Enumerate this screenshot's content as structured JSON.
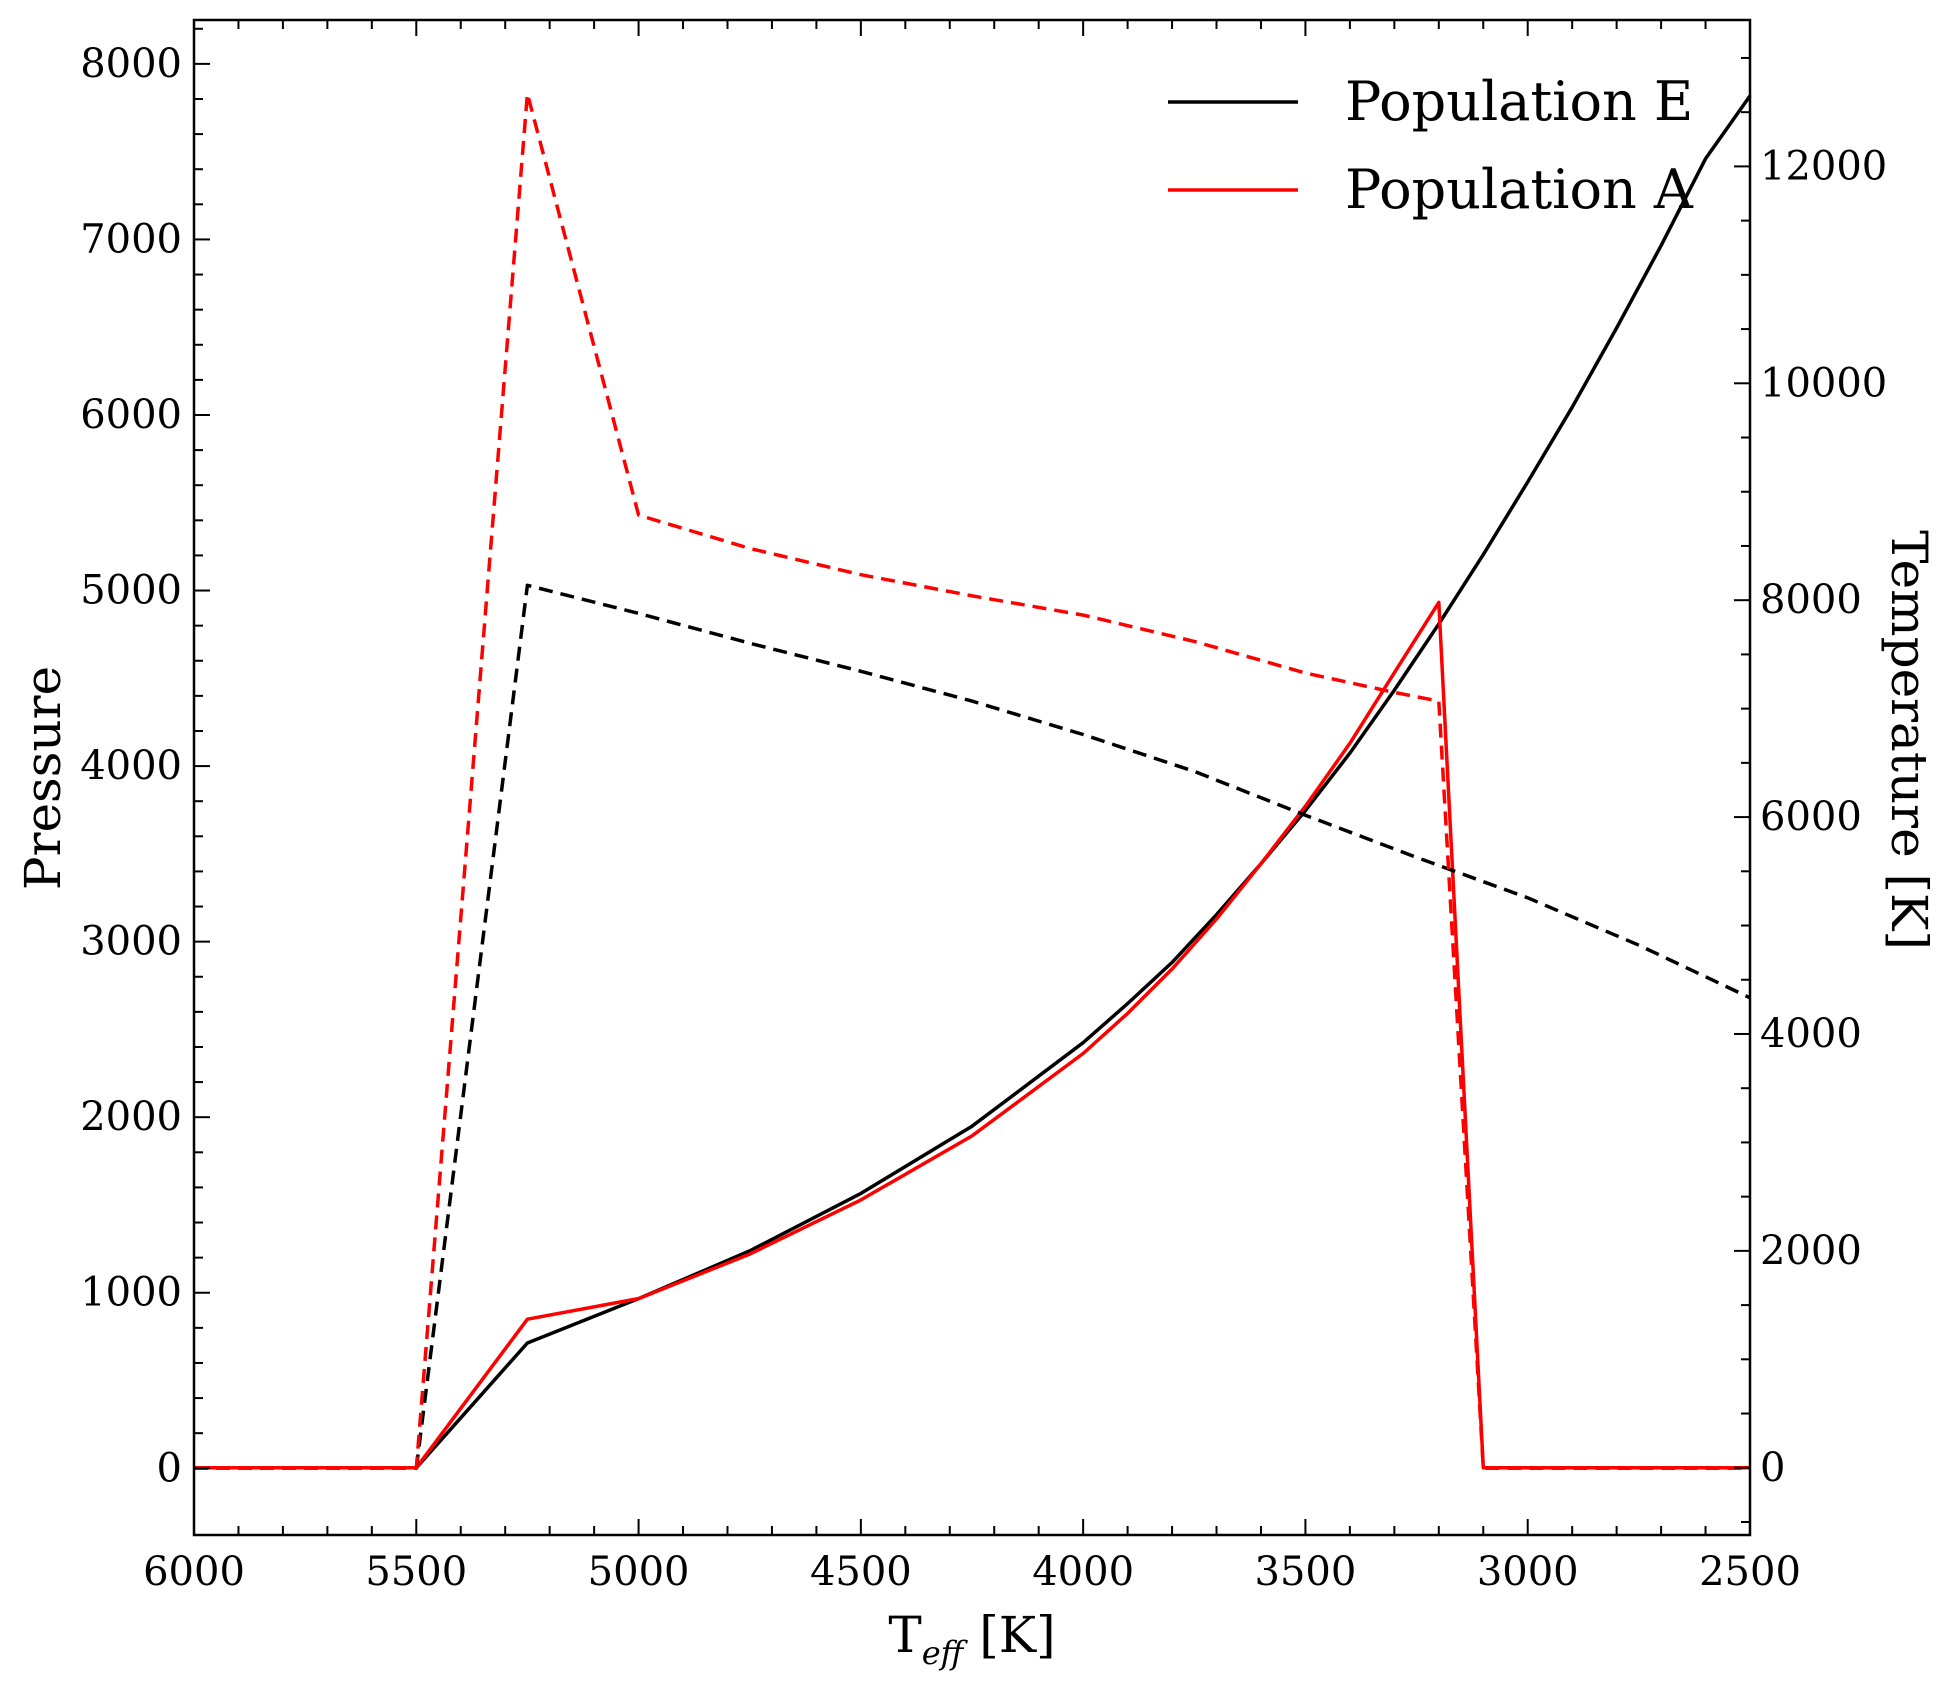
{
  "chart_data": {
    "type": "line",
    "title": "",
    "xlabel": "T",
    "xlabel_sub": "eff",
    "xlabel_unit": " [K]",
    "ylabel_left": "Pressure",
    "ylabel_right": "Temperature [K]",
    "xlim": [
      6000,
      2500
    ],
    "ylim_left": [
      -380,
      8250
    ],
    "ylim_right": [
      -620,
      13350
    ],
    "x_ticks": [
      6000,
      5500,
      5000,
      4500,
      4000,
      3500,
      3000,
      2500
    ],
    "x_tick_labels": [
      "6000",
      "5500",
      "5000",
      "4500",
      "4000",
      "3500",
      "3000",
      "2500"
    ],
    "y_left_ticks": [
      0,
      1000,
      2000,
      3000,
      4000,
      5000,
      6000,
      7000,
      8000
    ],
    "y_left_tick_labels": [
      "0",
      "1000",
      "2000",
      "3000",
      "4000",
      "5000",
      "6000",
      "7000",
      "8000"
    ],
    "y_right_ticks": [
      0,
      2000,
      4000,
      6000,
      8000,
      10000,
      12000
    ],
    "y_right_tick_labels": [
      "0",
      "2000",
      "4000",
      "6000",
      "8000",
      "10000",
      "12000"
    ],
    "legend": {
      "placement": "top-right",
      "entries": [
        {
          "label": "Population E",
          "color": "#000000"
        },
        {
          "label": "Population A",
          "color": "#ff0000"
        }
      ]
    },
    "series": [
      {
        "name": "Population E",
        "quantity": "Temperature",
        "axis": "right",
        "style": "solid",
        "color": "#000000",
        "x": [
          6000,
          5500,
          5250,
          5000,
          4750,
          4500,
          4250,
          4000,
          3900,
          3800,
          3700,
          3600,
          3500,
          3400,
          3300,
          3200,
          3100,
          3000,
          2900,
          2800,
          2700,
          2600,
          2500
        ],
        "y": [
          0,
          0,
          1150,
          1560,
          2000,
          2530,
          3150,
          3920,
          4280,
          4660,
          5100,
          5570,
          6060,
          6590,
          7170,
          7780,
          8420,
          9090,
          9780,
          10510,
          11270,
          12070,
          12650
        ]
      },
      {
        "name": "Population A",
        "quantity": "Temperature",
        "axis": "right",
        "style": "solid",
        "color": "#ff0000",
        "x": [
          6000,
          5500,
          5250,
          5000,
          4750,
          4500,
          4250,
          4000,
          3900,
          3800,
          3700,
          3600,
          3500,
          3400,
          3300,
          3200,
          3100,
          2500
        ],
        "y": [
          0,
          0,
          1370,
          1560,
          1970,
          2470,
          3060,
          3820,
          4190,
          4600,
          5060,
          5570,
          6100,
          6680,
          7330,
          7980,
          0,
          0
        ]
      },
      {
        "name": "Population E",
        "quantity": "Pressure",
        "axis": "left",
        "style": "dashed",
        "color": "#000000",
        "x": [
          5500,
          5250,
          5000,
          4750,
          4500,
          4250,
          4000,
          3750,
          3500,
          3250,
          3000,
          2750,
          2500
        ],
        "y": [
          0,
          5030,
          4870,
          4700,
          4540,
          4370,
          4180,
          3970,
          3720,
          3480,
          3250,
          2980,
          2680
        ]
      },
      {
        "name": "Population A",
        "quantity": "Pressure",
        "axis": "left",
        "style": "dashed",
        "color": "#ff0000",
        "x": [
          6000,
          5500,
          5250,
          5000,
          4750,
          4500,
          4250,
          4000,
          3750,
          3500,
          3300,
          3200,
          3100,
          2500
        ],
        "y": [
          0,
          0,
          7830,
          5430,
          5240,
          5090,
          4970,
          4860,
          4710,
          4530,
          4420,
          4370,
          0,
          0
        ]
      }
    ]
  }
}
